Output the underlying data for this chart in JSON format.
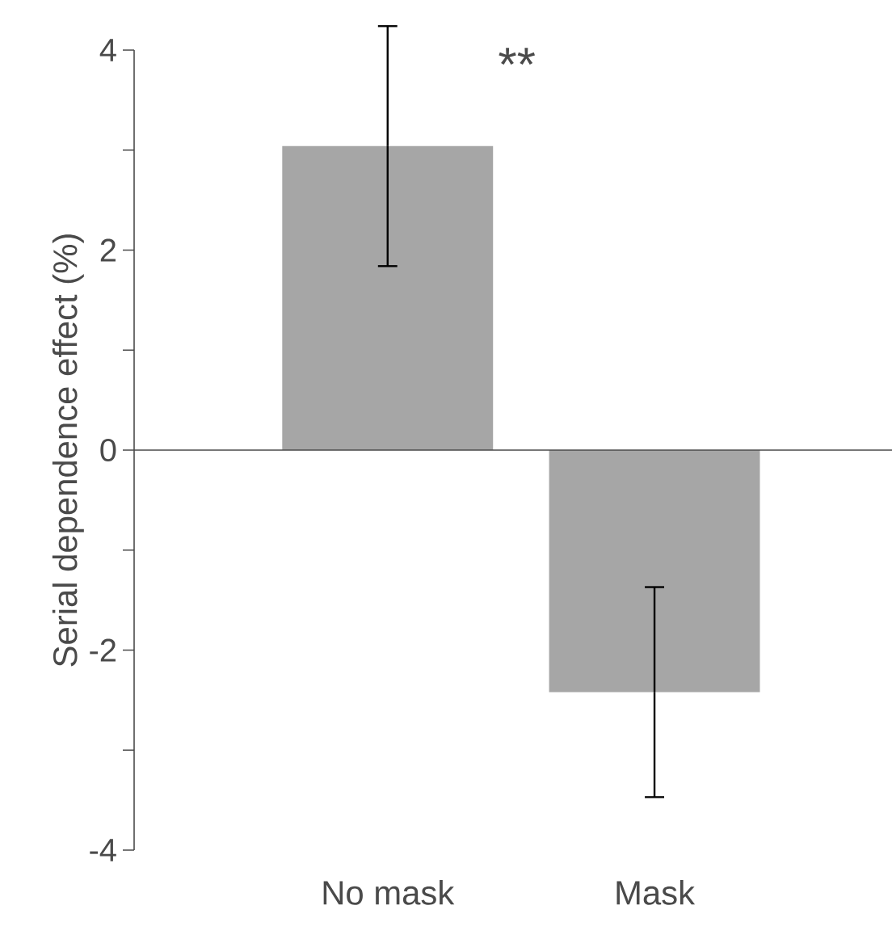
{
  "chart_data": {
    "type": "bar",
    "ylabel": "Serial dependence effect (%)",
    "categories": [
      "No mask",
      "Mask"
    ],
    "values": [
      3.04,
      -2.42
    ],
    "errors": [
      1.2,
      1.05
    ],
    "color": "#a6a6a6",
    "ylim": [
      -4,
      4
    ],
    "yticks": [
      -4,
      {
        "value": -3,
        "label": null
      },
      -2,
      {
        "value": -1,
        "label": null
      },
      0,
      {
        "value": 1,
        "label": null
      },
      2,
      {
        "value": 3,
        "label": null
      },
      4
    ],
    "annotations": [
      "**"
    ]
  }
}
